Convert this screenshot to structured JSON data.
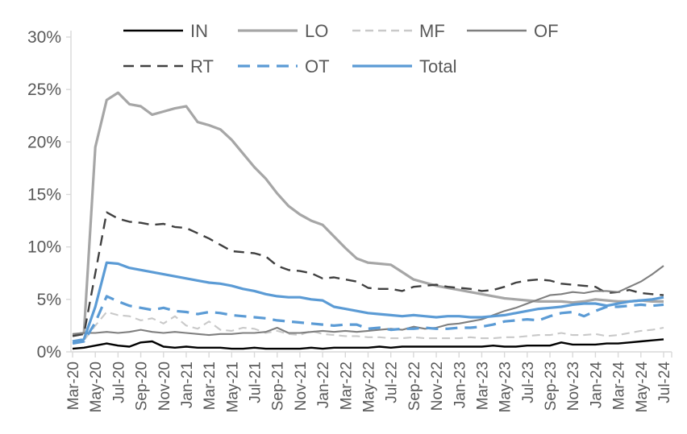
{
  "chart_data": {
    "type": "line",
    "title": "",
    "xlabel": "",
    "ylabel": "",
    "ylim": [
      0,
      30
    ],
    "grid": false,
    "legend_position": "top",
    "axis_text_color": "#595959",
    "axis_line_color": "#d9d9d9",
    "y_tick_labels": [
      "0%",
      "5%",
      "10%",
      "15%",
      "20%",
      "25%",
      "30%"
    ],
    "x_categories": [
      "Mar-20",
      "Apr-20",
      "May-20",
      "Jun-20",
      "Jul-20",
      "Aug-20",
      "Sep-20",
      "Oct-20",
      "Nov-20",
      "Dec-20",
      "Jan-21",
      "Feb-21",
      "Mar-21",
      "Apr-21",
      "May-21",
      "Jun-21",
      "Jul-21",
      "Aug-21",
      "Sep-21",
      "Oct-21",
      "Nov-21",
      "Dec-21",
      "Jan-22",
      "Feb-22",
      "Mar-22",
      "Apr-22",
      "May-22",
      "Jun-22",
      "Jul-22",
      "Aug-22",
      "Sep-22",
      "Oct-22",
      "Nov-22",
      "Dec-22",
      "Jan-23",
      "Feb-23",
      "Mar-23",
      "Apr-23",
      "May-23",
      "Jun-23",
      "Jul-23",
      "Aug-23",
      "Sep-23",
      "Oct-23",
      "Nov-23",
      "Dec-23",
      "Jan-24",
      "Feb-24",
      "Mar-24",
      "Apr-24",
      "May-24",
      "Jun-24",
      "Jul-24"
    ],
    "x_label_every": 2,
    "series": [
      {
        "name": "LO",
        "color": "#a6a6a6",
        "dash": "solid",
        "width": 3.2,
        "values": [
          1.6,
          1.8,
          19.5,
          24.0,
          24.7,
          23.6,
          23.4,
          22.6,
          22.9,
          23.2,
          23.4,
          21.9,
          21.6,
          21.2,
          20.2,
          18.9,
          17.6,
          16.5,
          15.1,
          13.9,
          13.1,
          12.5,
          12.1,
          11.0,
          9.9,
          8.9,
          8.5,
          8.4,
          8.3,
          7.6,
          6.9,
          6.6,
          6.3,
          6.1,
          5.9,
          5.7,
          5.5,
          5.3,
          5.1,
          5.0,
          4.9,
          4.8,
          4.8,
          4.8,
          4.7,
          4.8,
          5.0,
          4.9,
          4.8,
          4.8,
          4.9,
          4.8,
          4.8
        ]
      },
      {
        "name": "MF",
        "color": "#c9c9c9",
        "dash": "10 6",
        "width": 2.1,
        "values": [
          1.0,
          1.1,
          2.5,
          3.8,
          3.5,
          3.4,
          3.0,
          3.2,
          2.7,
          3.4,
          2.5,
          2.2,
          2.9,
          2.1,
          2.0,
          2.3,
          2.2,
          1.8,
          2.0,
          1.7,
          1.6,
          2.0,
          1.7,
          1.6,
          1.5,
          1.5,
          1.4,
          1.4,
          1.3,
          1.3,
          1.4,
          1.3,
          1.3,
          1.3,
          1.3,
          1.4,
          1.3,
          1.3,
          1.4,
          1.4,
          1.5,
          1.6,
          1.6,
          1.8,
          1.6,
          1.6,
          1.7,
          1.5,
          1.6,
          1.8,
          2.0,
          2.1,
          2.3
        ]
      },
      {
        "name": "RT",
        "color": "#404040",
        "dash": "13 8",
        "width": 2.4,
        "values": [
          1.5,
          1.7,
          7.5,
          13.3,
          12.7,
          12.4,
          12.3,
          12.1,
          12.2,
          11.9,
          11.8,
          11.3,
          10.8,
          10.2,
          9.6,
          9.5,
          9.4,
          9.1,
          8.2,
          7.8,
          7.7,
          7.5,
          7.0,
          7.1,
          6.9,
          6.7,
          6.1,
          6.0,
          6.0,
          5.8,
          6.2,
          6.3,
          6.4,
          6.2,
          6.1,
          6.0,
          5.8,
          5.9,
          6.2,
          6.6,
          6.8,
          6.9,
          6.8,
          6.5,
          6.4,
          6.3,
          6.2,
          5.6,
          5.7,
          5.9,
          5.6,
          5.5,
          5.4
        ]
      },
      {
        "name": "OF",
        "color": "#7f7f7f",
        "dash": "solid",
        "width": 2.1,
        "values": [
          1.7,
          1.8,
          1.8,
          1.9,
          1.8,
          1.9,
          2.1,
          1.9,
          1.8,
          1.9,
          1.8,
          1.7,
          1.6,
          1.7,
          1.7,
          1.8,
          1.8,
          1.9,
          2.3,
          1.8,
          1.8,
          1.9,
          2.0,
          1.9,
          2.0,
          1.9,
          2.0,
          2.1,
          2.2,
          2.1,
          2.4,
          2.2,
          2.3,
          2.6,
          2.7,
          2.9,
          3.1,
          3.5,
          3.9,
          4.2,
          4.6,
          5.0,
          5.4,
          5.5,
          5.7,
          5.6,
          5.8,
          5.8,
          5.7,
          6.2,
          6.7,
          7.4,
          8.2
        ]
      },
      {
        "name": "IN",
        "color": "#000000",
        "dash": "solid",
        "width": 2.4,
        "values": [
          0.3,
          0.4,
          0.6,
          0.8,
          0.6,
          0.5,
          0.9,
          1.0,
          0.5,
          0.4,
          0.5,
          0.4,
          0.4,
          0.4,
          0.3,
          0.3,
          0.4,
          0.3,
          0.3,
          0.3,
          0.3,
          0.4,
          0.3,
          0.4,
          0.4,
          0.4,
          0.4,
          0.5,
          0.4,
          0.5,
          0.5,
          0.5,
          0.5,
          0.5,
          0.5,
          0.5,
          0.5,
          0.6,
          0.5,
          0.5,
          0.6,
          0.6,
          0.6,
          0.9,
          0.7,
          0.7,
          0.7,
          0.8,
          0.8,
          0.9,
          1.0,
          1.1,
          1.2
        ]
      },
      {
        "name": "OT",
        "color": "#5b9bd5",
        "dash": "15 9",
        "width": 3.2,
        "values": [
          0.8,
          1.0,
          2.8,
          5.3,
          4.8,
          4.4,
          4.2,
          4.0,
          4.2,
          3.9,
          3.8,
          3.6,
          3.8,
          3.7,
          3.5,
          3.4,
          3.3,
          3.2,
          3.0,
          2.9,
          2.8,
          2.7,
          2.6,
          2.5,
          2.6,
          2.6,
          2.2,
          2.3,
          2.1,
          2.2,
          2.2,
          2.3,
          2.2,
          2.2,
          2.3,
          2.3,
          2.4,
          2.6,
          2.9,
          3.0,
          3.1,
          3.0,
          3.4,
          3.7,
          3.8,
          3.4,
          3.9,
          4.3,
          4.3,
          4.4,
          4.5,
          4.4,
          4.5
        ]
      },
      {
        "name": "Total",
        "color": "#5b9bd5",
        "dash": "solid",
        "width": 3.2,
        "values": [
          1.0,
          1.2,
          4.3,
          8.5,
          8.4,
          8.0,
          7.8,
          7.6,
          7.4,
          7.2,
          7.0,
          6.8,
          6.6,
          6.5,
          6.3,
          6.0,
          5.8,
          5.5,
          5.3,
          5.2,
          5.2,
          5.0,
          4.9,
          4.3,
          4.1,
          3.9,
          3.7,
          3.6,
          3.5,
          3.4,
          3.5,
          3.4,
          3.3,
          3.4,
          3.4,
          3.3,
          3.3,
          3.4,
          3.5,
          3.7,
          3.9,
          4.1,
          4.2,
          4.3,
          4.5,
          4.6,
          4.6,
          4.4,
          4.6,
          4.8,
          4.9,
          5.0,
          5.2
        ]
      }
    ],
    "legend_rows": [
      [
        "IN",
        "LO",
        "MF",
        "OF"
      ],
      [
        "RT",
        "OT",
        "Total"
      ]
    ]
  }
}
